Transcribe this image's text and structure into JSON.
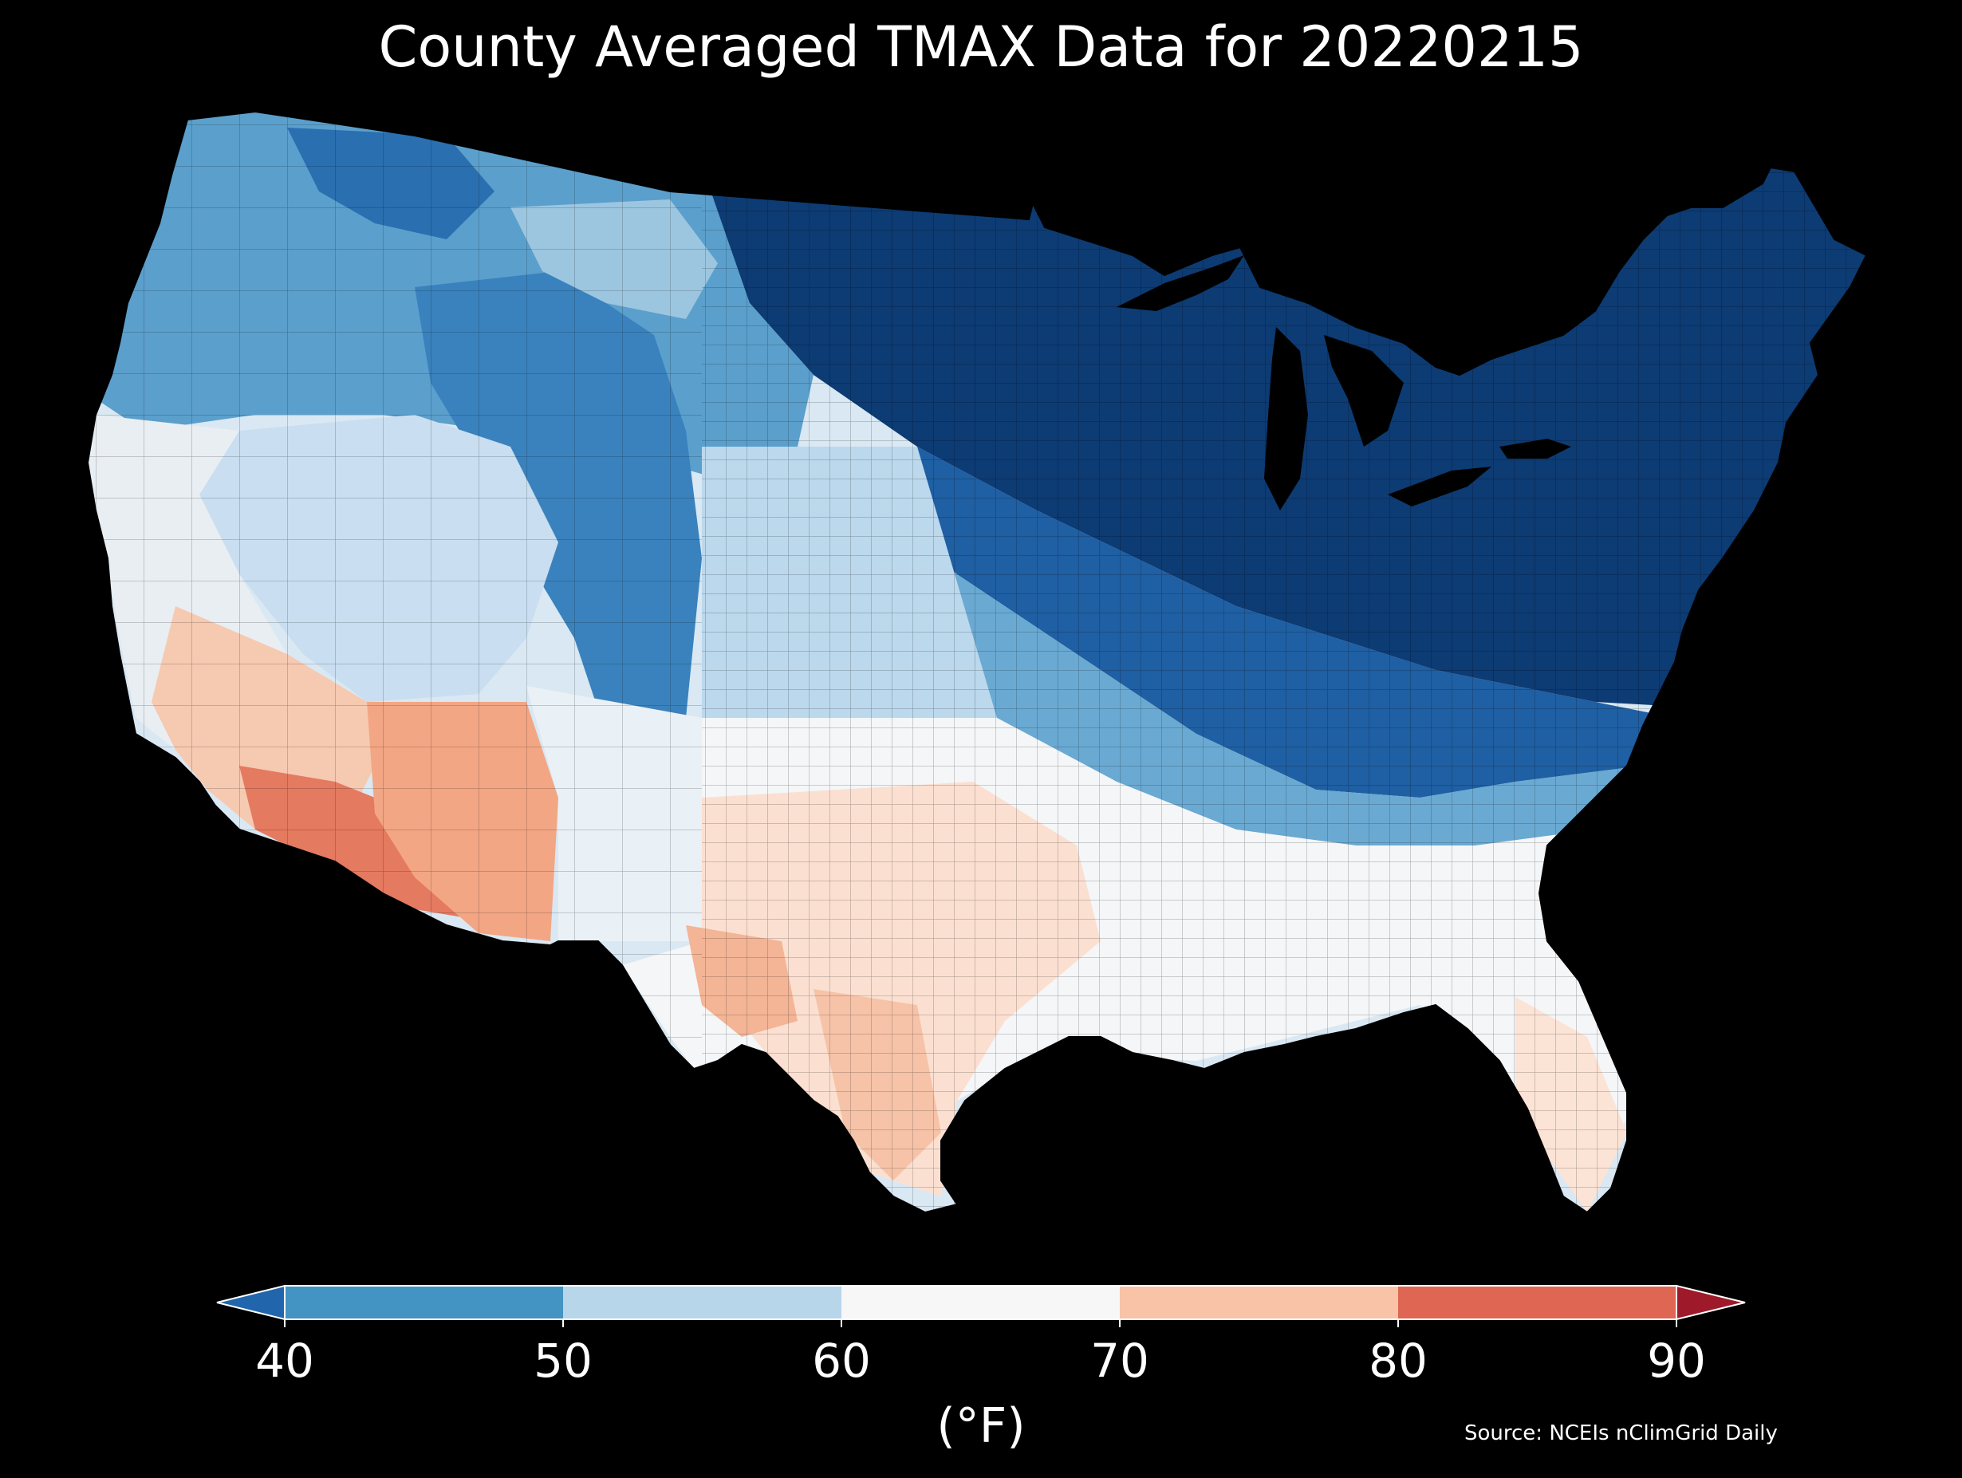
{
  "title": "County Averaged TMAX Data for 20220215",
  "source": "Source: NCEIs nClimGrid Daily",
  "colorbar": {
    "unit": "(°F)",
    "ticks": [
      "40",
      "50",
      "60",
      "70",
      "80",
      "90"
    ],
    "bins": [
      {
        "from": 40,
        "to": 50,
        "color": "#4393c3"
      },
      {
        "from": 50,
        "to": 60,
        "color": "#b7d6ea"
      },
      {
        "from": 60,
        "to": 70,
        "color": "#f7f7f7"
      },
      {
        "from": 70,
        "to": 80,
        "color": "#f8c3a7"
      },
      {
        "from": 80,
        "to": 90,
        "color": "#de6653"
      }
    ],
    "under_color": "#2166ac",
    "over_color": "#9e1a2a"
  },
  "map_colors": {
    "background": "#000000",
    "cold_deep": "#0b3466",
    "cold": "#1f5fa3",
    "cool": "#4a94c5",
    "mild": "#a7cde4",
    "neutral": "#f4f6f8",
    "warm": "#f8c8ae",
    "hot": "#e47a60",
    "lakes": "#000000"
  }
}
